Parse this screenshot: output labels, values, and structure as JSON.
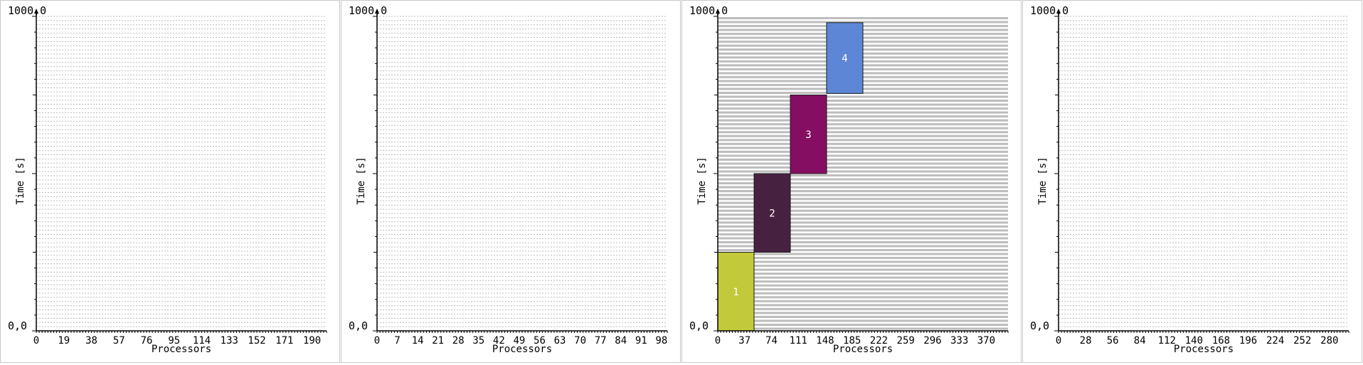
{
  "colors": {
    "grid_line": "#bcbcbc",
    "axis": "#000000",
    "panel_border": "#c8c8c8",
    "job_border": "#1a1a1a"
  },
  "chart_data": [
    {
      "type": "gantt",
      "xlabel": "Processors",
      "ylabel": "Time [s]",
      "ylim": [
        0,
        1000
      ],
      "ymax_label": "1000,0",
      "ymin_label": "0,0",
      "processors": 200,
      "xticks": [
        0,
        19,
        38,
        57,
        76,
        95,
        114,
        133,
        152,
        171,
        190
      ],
      "grid": "dense-dotted",
      "jobs": []
    },
    {
      "type": "gantt",
      "xlabel": "Processors",
      "ylabel": "Time [s]",
      "ylim": [
        0,
        1000
      ],
      "ymax_label": "1000,0",
      "ymin_label": "0,0",
      "processors": 100,
      "xticks": [
        0,
        7,
        14,
        21,
        28,
        35,
        42,
        49,
        56,
        63,
        70,
        77,
        84,
        91,
        98
      ],
      "grid": "dense-dotted",
      "jobs": []
    },
    {
      "type": "gantt",
      "xlabel": "Processors",
      "ylabel": "Time [s]",
      "ylim": [
        0,
        1000
      ],
      "ymax_label": "1000,0",
      "ymin_label": "0,0",
      "processors": 400,
      "xticks": [
        0,
        37,
        74,
        111,
        148,
        185,
        222,
        259,
        296,
        333,
        370
      ],
      "grid": "bands",
      "jobs": [
        {
          "label": "1",
          "proc_start": 0,
          "proc_end": 49,
          "start": 0,
          "end": 250,
          "color": "#c2c93a",
          "text_color": "#ffffff"
        },
        {
          "label": "2",
          "proc_start": 50,
          "proc_end": 99,
          "start": 250,
          "end": 500,
          "color": "#472140",
          "text_color": "#ffffff"
        },
        {
          "label": "3",
          "proc_start": 100,
          "proc_end": 149,
          "start": 500,
          "end": 750,
          "color": "#850e62",
          "text_color": "#ffffff"
        },
        {
          "label": "4",
          "proc_start": 150,
          "proc_end": 199,
          "start": 755,
          "end": 980,
          "color": "#5d87d6",
          "text_color": "#ffffff"
        }
      ]
    },
    {
      "type": "gantt",
      "xlabel": "Processors",
      "ylabel": "Time [s]",
      "ylim": [
        0,
        1000
      ],
      "ymax_label": "1000,0",
      "ymin_label": "0,0",
      "processors": 300,
      "xticks": [
        0,
        28,
        56,
        84,
        112,
        140,
        168,
        196,
        224,
        252,
        280
      ],
      "grid": "dense-dotted",
      "jobs": []
    }
  ]
}
